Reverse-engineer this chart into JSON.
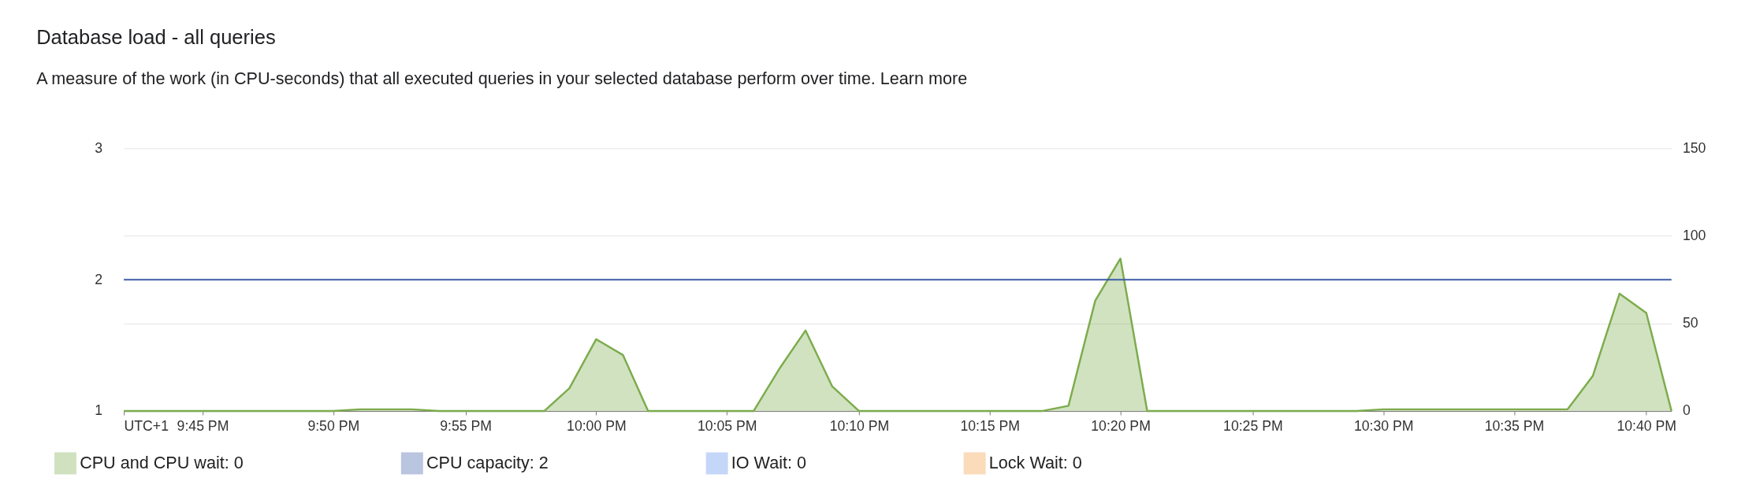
{
  "chart_data": {
    "type": "area",
    "title": "Database load - all queries",
    "subtitle": "A measure of the work (in CPU-seconds) that all executed queries in your selected database perform over time. Learn more",
    "x": [
      21.7,
      21.717,
      21.733,
      21.75,
      21.767,
      21.783,
      21.8,
      21.817,
      21.833,
      21.85,
      21.867,
      21.883,
      21.9,
      21.917,
      21.933,
      21.95,
      21.967,
      21.983,
      22,
      22.017,
      22.033,
      22.05,
      22.067,
      22.083,
      22.1,
      22.117,
      22.133,
      22.15,
      22.167,
      22.183,
      22.2,
      22.217,
      22.233,
      22.25,
      22.267,
      22.283,
      22.3,
      22.317,
      22.333,
      22.35,
      22.367,
      22.383,
      22.4,
      22.417,
      22.433,
      22.45,
      22.467,
      22.483,
      22.5,
      22.517,
      22.533,
      22.55,
      22.567,
      22.583,
      22.6,
      22.617,
      22.633,
      22.65,
      22.667,
      22.683
    ],
    "series": [
      {
        "name": "CPU and CPU wait: 0",
        "axis": "y2",
        "color": "#7cac4c",
        "values": [
          0,
          0,
          0,
          0,
          0,
          0,
          0,
          0,
          0,
          1,
          1,
          1,
          0,
          0,
          0,
          0,
          0,
          13,
          41,
          32,
          0,
          0,
          0,
          0,
          0,
          25,
          46,
          14,
          0,
          0,
          0,
          0,
          0,
          0,
          0,
          0,
          3,
          63,
          87,
          0,
          0,
          0,
          0,
          0,
          0,
          0,
          0,
          0,
          1,
          1,
          1,
          1,
          1,
          1,
          1,
          1,
          20,
          67,
          56,
          0
        ]
      },
      {
        "name": "CPU capacity: 2",
        "type": "line",
        "axis": "y",
        "color": "#3c5ba9",
        "x": [
          21.7,
          22.683
        ],
        "values": [
          2,
          2
        ]
      },
      {
        "name": "IO Wait: 0",
        "axis": "y2",
        "color": "#5b8ff0",
        "values": [
          null,
          null,
          null,
          null,
          null,
          null,
          null,
          null,
          null,
          null,
          null,
          null,
          null,
          null,
          null,
          null,
          null,
          null,
          null,
          null,
          null,
          null,
          null,
          null,
          null,
          null,
          null,
          null,
          null,
          null,
          null,
          null,
          null,
          null,
          null,
          null,
          null,
          null,
          null,
          null,
          null,
          null,
          null,
          null,
          null,
          null,
          null,
          null,
          null,
          null,
          null,
          null,
          null,
          null,
          null,
          null,
          null,
          null,
          null,
          null
        ]
      },
      {
        "name": "Lock Wait: 0",
        "axis": "y2",
        "color": "#f29a3c",
        "values": [
          null,
          null,
          null,
          null,
          null,
          null,
          null,
          null,
          null,
          null,
          null,
          null,
          null,
          null,
          null,
          null,
          null,
          null,
          null,
          null,
          null,
          null,
          null,
          null,
          null,
          null,
          null,
          null,
          null,
          null,
          null,
          null,
          null,
          null,
          null,
          null,
          null,
          null,
          null,
          null,
          null,
          null,
          null,
          null,
          null,
          null,
          null,
          null,
          null,
          null,
          null,
          null,
          null,
          null,
          null,
          null,
          null,
          null,
          null,
          null
        ]
      }
    ],
    "xlim": [
      21.7,
      22.683
    ],
    "xticks": [
      {
        "value": 21.7,
        "label": "UTC+1"
      },
      {
        "value": 21.75,
        "label": "9:45 PM"
      },
      {
        "value": 21.833,
        "label": "9:50 PM"
      },
      {
        "value": 21.917,
        "label": "9:55 PM"
      },
      {
        "value": 22,
        "label": "10:00 PM"
      },
      {
        "value": 22.083,
        "label": "10:05 PM"
      },
      {
        "value": 22.167,
        "label": "10:10 PM"
      },
      {
        "value": 22.25,
        "label": "10:15 PM"
      },
      {
        "value": 22.333,
        "label": "10:20 PM"
      },
      {
        "value": 22.417,
        "label": "10:25 PM"
      },
      {
        "value": 22.5,
        "label": "10:30 PM"
      },
      {
        "value": 22.583,
        "label": "10:35 PM"
      },
      {
        "value": 22.667,
        "label": "10:40 PM"
      }
    ],
    "ylim": [
      1,
      3
    ],
    "yticks": [
      1,
      2,
      3
    ],
    "y2lim": [
      0,
      150
    ],
    "y2ticks": [
      0,
      50,
      100,
      150
    ],
    "grid": "y",
    "legend": "bottom"
  }
}
